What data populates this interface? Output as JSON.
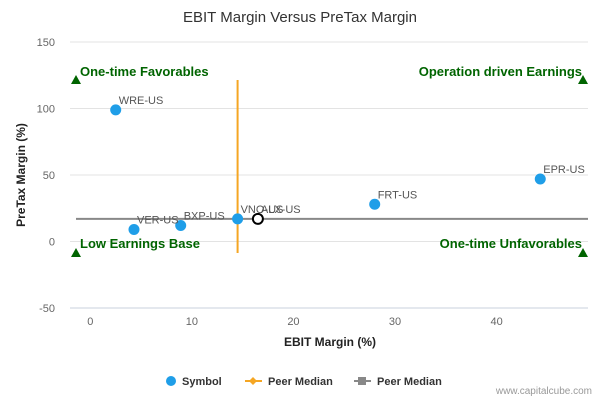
{
  "chart_data": {
    "type": "scatter",
    "title": "EBIT Margin Versus PreTax Margin",
    "xlabel": "EBIT Margin (%)",
    "ylabel": "PreTax Margin (%)",
    "xlim": [
      -2,
      49
    ],
    "ylim": [
      -50,
      150
    ],
    "x_ticks": [
      "0",
      "10",
      "20",
      "30",
      "40"
    ],
    "y_ticks": [
      "150",
      "100",
      "50",
      "0",
      "-50"
    ],
    "grid": "horizontal",
    "legend_position": "bottom",
    "colors": {
      "symbol": "#1f9ee8",
      "peer_median_x": "#f5a623",
      "peer_median_y": "#888888",
      "quadrant": "#006400"
    },
    "points": [
      {
        "label": "WRE-US",
        "x": 2.5,
        "y": 99
      },
      {
        "label": "EPR-US",
        "x": 44.3,
        "y": 47
      },
      {
        "label": "FRT-US",
        "x": 28,
        "y": 28
      },
      {
        "label": "BXP-US",
        "x": 8.9,
        "y": 12
      },
      {
        "label": "VER-US",
        "x": 4.3,
        "y": 9
      },
      {
        "label": "VNO-US",
        "x": 14.5,
        "y": 17
      }
    ],
    "highlight": {
      "label": "ALX-US",
      "x": 16.5,
      "y": 17
    },
    "peer_median_x": 14.5,
    "peer_median_y": 17,
    "quadrants": {
      "top_left": "One-time Favorables",
      "top_right": "Operation driven Earnings",
      "bottom_left": "Low Earnings Base",
      "bottom_right": "One-time Unfavorables"
    },
    "legend": [
      {
        "label": "Symbol",
        "kind": "dot"
      },
      {
        "label": "Peer Median",
        "kind": "orange-line"
      },
      {
        "label": "Peer Median",
        "kind": "gray-line"
      }
    ],
    "credit": "www.capitalcube.com"
  }
}
